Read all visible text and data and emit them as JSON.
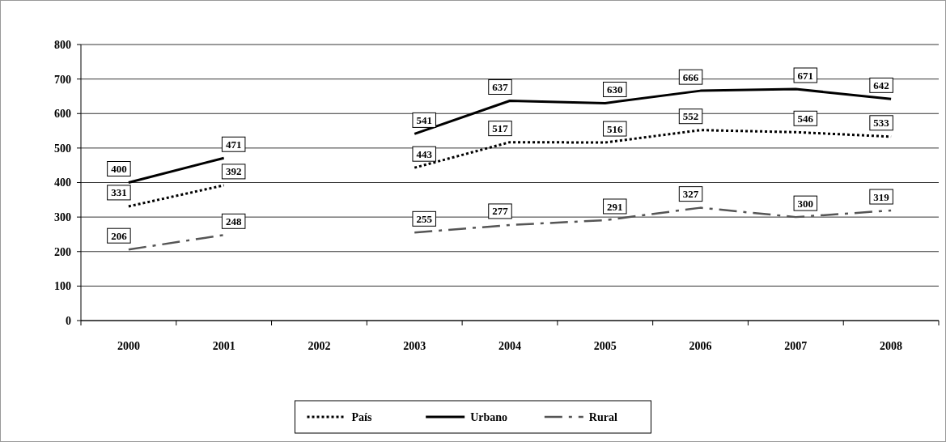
{
  "chart_data": {
    "type": "line",
    "categories": [
      "2000",
      "2001",
      "2002",
      "2003",
      "2004",
      "2005",
      "2006",
      "2007",
      "2008"
    ],
    "series": [
      {
        "name": "País",
        "color": "#000000",
        "line_style": "dotted",
        "values": [
          331,
          392,
          null,
          443,
          517,
          516,
          552,
          546,
          533
        ]
      },
      {
        "name": "Urbano",
        "color": "#000000",
        "line_style": "solid",
        "values": [
          400,
          471,
          null,
          541,
          637,
          630,
          666,
          671,
          642
        ]
      },
      {
        "name": "Rural",
        "color": "#555555",
        "line_style": "dashed",
        "values": [
          206,
          248,
          null,
          255,
          277,
          291,
          327,
          300,
          319
        ]
      }
    ],
    "ylim": [
      0,
      800
    ],
    "yticks": [
      0,
      100,
      200,
      300,
      400,
      500,
      600,
      700,
      800
    ],
    "grid": "y",
    "legend": "bottom",
    "data_labels": true,
    "marker": "none"
  }
}
